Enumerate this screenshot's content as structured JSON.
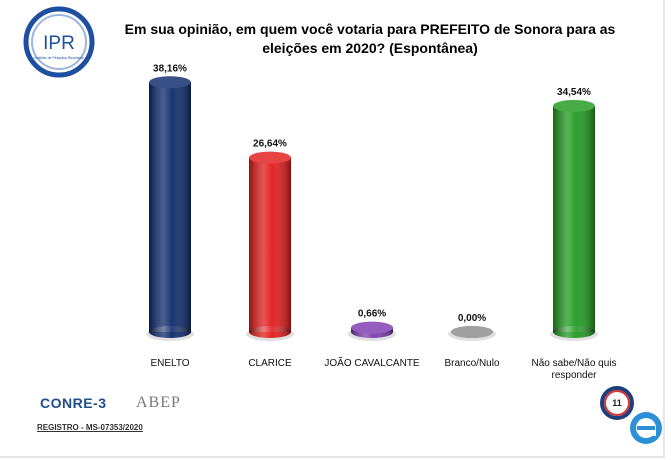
{
  "logo": {
    "text": "IPR",
    "subtitle": "Instituto de Pesquisa Resultado"
  },
  "chart_data": {
    "type": "bar",
    "title": "Em sua opinião, em quem você votaria para PREFEITO de Sonora para as eleições em 2020? (Espontânea)",
    "categories": [
      "ENELTO",
      "CLARICE",
      "JOÃO CAVALCANTE",
      "Branco/Nulo",
      "Não sabe/Não quis responder"
    ],
    "values": [
      38.16,
      26.64,
      0.66,
      0.0,
      34.54
    ],
    "value_labels": [
      "38,16%",
      "26,64%",
      "0,66%",
      "0,00%",
      "34,54%"
    ],
    "colors": [
      "#0d2a6b",
      "#e21b1b",
      "#7d3bb0",
      "#8c8c8c",
      "#1f9a1f"
    ],
    "ylim": [
      0,
      40
    ],
    "grid": false,
    "legend": "none"
  },
  "footer": {
    "conre": "CONRE-3",
    "abep": "ABEP",
    "registro": "REGISTRO - MS-07353/2020",
    "page_number": "11"
  }
}
